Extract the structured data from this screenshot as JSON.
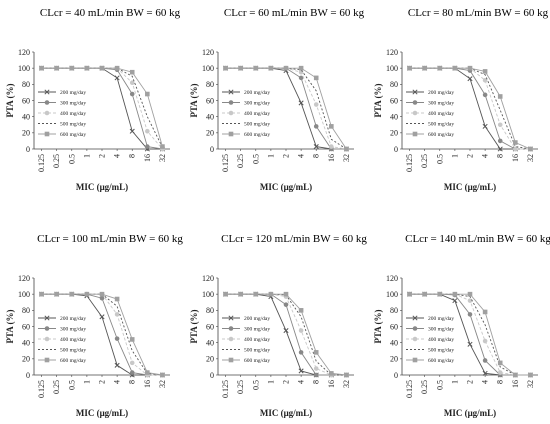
{
  "chart_data": [
    {
      "type": "line",
      "title": "CLcr = 40 mL/min BW = 60 kg",
      "xlabel": "MIC (μg/mL)",
      "ylabel": "PTA (%)",
      "x": [
        "0.125",
        "0.25",
        "0.5",
        "1",
        "2",
        "4",
        "8",
        "16",
        "32"
      ],
      "ylim": [
        0,
        120
      ],
      "yticks": [
        0,
        20,
        40,
        60,
        80,
        100,
        120
      ],
      "legend_position": "left",
      "series": [
        {
          "name": "200 mg/day",
          "marker": "x",
          "color": "#555555",
          "dash": "",
          "values": [
            100,
            100,
            100,
            100,
            100,
            88,
            22,
            0,
            0
          ]
        },
        {
          "name": "300 mg/day",
          "marker": "circle",
          "color": "#888888",
          "dash": "",
          "values": [
            100,
            100,
            100,
            100,
            100,
            98,
            68,
            3,
            0
          ]
        },
        {
          "name": "400 mg/day",
          "marker": "circle-light",
          "color": "#c8c8c8",
          "dash": "3,2",
          "values": [
            100,
            100,
            100,
            100,
            100,
            100,
            82,
            22,
            0
          ]
        },
        {
          "name": "500 mg/day",
          "marker": "none",
          "color": "#555555",
          "dash": "2,2",
          "values": [
            100,
            100,
            100,
            100,
            100,
            100,
            90,
            40,
            2
          ]
        },
        {
          "name": "600 mg/day",
          "marker": "square",
          "color": "#a0a0a0",
          "dash": "",
          "values": [
            100,
            100,
            100,
            100,
            100,
            100,
            95,
            68,
            3
          ]
        }
      ]
    },
    {
      "type": "line",
      "title": "CLcr = 60 mL/min BW = 60 kg",
      "xlabel": "MIC (μg/mL)",
      "ylabel": "PTA (%)",
      "x": [
        "0.125",
        "0.25",
        "0.5",
        "1",
        "2",
        "4",
        "8",
        "16",
        "32"
      ],
      "ylim": [
        0,
        120
      ],
      "yticks": [
        0,
        20,
        40,
        60,
        80,
        100,
        120
      ],
      "legend_position": "left",
      "series": [
        {
          "name": "200 mg/day",
          "marker": "x",
          "color": "#555555",
          "dash": "",
          "values": [
            100,
            100,
            100,
            100,
            97,
            57,
            3,
            0,
            0
          ]
        },
        {
          "name": "300 mg/day",
          "marker": "circle",
          "color": "#888888",
          "dash": "",
          "values": [
            100,
            100,
            100,
            100,
            100,
            88,
            28,
            0,
            0
          ]
        },
        {
          "name": "400 mg/day",
          "marker": "circle-light",
          "color": "#c8c8c8",
          "dash": "3,2",
          "values": [
            100,
            100,
            100,
            100,
            100,
            95,
            55,
            3,
            0
          ]
        },
        {
          "name": "500 mg/day",
          "marker": "none",
          "color": "#555555",
          "dash": "2,2",
          "values": [
            100,
            100,
            100,
            100,
            100,
            98,
            72,
            12,
            0
          ]
        },
        {
          "name": "600 mg/day",
          "marker": "square",
          "color": "#a0a0a0",
          "dash": "",
          "values": [
            100,
            100,
            100,
            100,
            100,
            100,
            88,
            28,
            0
          ]
        }
      ]
    },
    {
      "type": "line",
      "title": "CLcr = 80 mL/min BW = 60 kg",
      "xlabel": "MIC (μg/mL)",
      "ylabel": "PTA (%)",
      "x": [
        "0.125",
        "0.25",
        "0.5",
        "1",
        "2",
        "4",
        "8",
        "16",
        "32"
      ],
      "ylim": [
        0,
        120
      ],
      "yticks": [
        0,
        20,
        40,
        60,
        80,
        100,
        120
      ],
      "legend_position": "left",
      "series": [
        {
          "name": "200 mg/day",
          "marker": "x",
          "color": "#555555",
          "dash": "",
          "values": [
            100,
            100,
            100,
            100,
            87,
            28,
            0,
            0,
            0
          ]
        },
        {
          "name": "300 mg/day",
          "marker": "circle",
          "color": "#888888",
          "dash": "",
          "values": [
            100,
            100,
            100,
            100,
            97,
            67,
            10,
            0,
            0
          ]
        },
        {
          "name": "400 mg/day",
          "marker": "circle-light",
          "color": "#c8c8c8",
          "dash": "3,2",
          "values": [
            100,
            100,
            100,
            100,
            100,
            85,
            30,
            0,
            0
          ]
        },
        {
          "name": "500 mg/day",
          "marker": "none",
          "color": "#555555",
          "dash": "2,2",
          "values": [
            100,
            100,
            100,
            100,
            100,
            92,
            48,
            3,
            0
          ]
        },
        {
          "name": "600 mg/day",
          "marker": "square",
          "color": "#a0a0a0",
          "dash": "",
          "values": [
            100,
            100,
            100,
            100,
            100,
            96,
            65,
            8,
            0
          ]
        }
      ]
    },
    {
      "type": "line",
      "title": "CLcr = 100 mL/min BW = 60 kg",
      "xlabel": "MIC (μg/mL)",
      "ylabel": "PTA (%)",
      "x": [
        "0.125",
        "0.25",
        "0.5",
        "1",
        "2",
        "4",
        "8",
        "16",
        "32"
      ],
      "ylim": [
        0,
        120
      ],
      "yticks": [
        0,
        20,
        40,
        60,
        80,
        100,
        120
      ],
      "legend_position": "left",
      "series": [
        {
          "name": "200 mg/day",
          "marker": "x",
          "color": "#555555",
          "dash": "",
          "values": [
            100,
            100,
            100,
            98,
            72,
            12,
            0,
            0,
            0
          ]
        },
        {
          "name": "300 mg/day",
          "marker": "circle",
          "color": "#888888",
          "dash": "",
          "values": [
            100,
            100,
            100,
            100,
            95,
            45,
            3,
            0,
            0
          ]
        },
        {
          "name": "400 mg/day",
          "marker": "circle-light",
          "color": "#c8c8c8",
          "dash": "3,2",
          "values": [
            100,
            100,
            100,
            100,
            100,
            75,
            15,
            0,
            0
          ]
        },
        {
          "name": "500 mg/day",
          "marker": "none",
          "color": "#555555",
          "dash": "2,2",
          "values": [
            100,
            100,
            100,
            100,
            100,
            85,
            30,
            2,
            0
          ]
        },
        {
          "name": "600 mg/day",
          "marker": "square",
          "color": "#a0a0a0",
          "dash": "",
          "values": [
            100,
            100,
            100,
            100,
            100,
            94,
            44,
            3,
            0
          ]
        }
      ]
    },
    {
      "type": "line",
      "title": "CLcr = 120 mL/min BW = 60 kg",
      "xlabel": "MIC (μg/mL)",
      "ylabel": "PTA (%)",
      "x": [
        "0.125",
        "0.25",
        "0.5",
        "1",
        "2",
        "4",
        "8",
        "16",
        "32"
      ],
      "ylim": [
        0,
        120
      ],
      "yticks": [
        0,
        20,
        40,
        60,
        80,
        100,
        120
      ],
      "legend_position": "left",
      "series": [
        {
          "name": "200 mg/day",
          "marker": "x",
          "color": "#555555",
          "dash": "",
          "values": [
            100,
            100,
            100,
            97,
            55,
            5,
            0,
            0,
            0
          ]
        },
        {
          "name": "300 mg/day",
          "marker": "circle",
          "color": "#888888",
          "dash": "",
          "values": [
            100,
            100,
            100,
            100,
            87,
            28,
            0,
            0,
            0
          ]
        },
        {
          "name": "400 mg/day",
          "marker": "circle-light",
          "color": "#c8c8c8",
          "dash": "3,2",
          "values": [
            100,
            100,
            100,
            100,
            97,
            55,
            8,
            0,
            0
          ]
        },
        {
          "name": "500 mg/day",
          "marker": "none",
          "color": "#555555",
          "dash": "2,2",
          "values": [
            100,
            100,
            100,
            100,
            99,
            72,
            17,
            0,
            0
          ]
        },
        {
          "name": "600 mg/day",
          "marker": "square",
          "color": "#a0a0a0",
          "dash": "",
          "values": [
            100,
            100,
            100,
            100,
            100,
            80,
            28,
            2,
            0
          ]
        }
      ]
    },
    {
      "type": "line",
      "title": "CLcr = 140 mL/min BW = 60 kg",
      "xlabel": "MIC (μg/mL)",
      "ylabel": "PTA (%)",
      "x": [
        "0.125",
        "0.25",
        "0.5",
        "1",
        "2",
        "4",
        "8",
        "16",
        "32"
      ],
      "ylim": [
        0,
        120
      ],
      "yticks": [
        0,
        20,
        40,
        60,
        80,
        100,
        120
      ],
      "legend_position": "left",
      "series": [
        {
          "name": "200 mg/day",
          "marker": "x",
          "color": "#555555",
          "dash": "",
          "values": [
            100,
            100,
            100,
            92,
            38,
            2,
            0,
            0,
            0
          ]
        },
        {
          "name": "300 mg/day",
          "marker": "circle",
          "color": "#888888",
          "dash": "",
          "values": [
            100,
            100,
            100,
            99,
            75,
            18,
            0,
            0,
            0
          ]
        },
        {
          "name": "400 mg/day",
          "marker": "circle-light",
          "color": "#c8c8c8",
          "dash": "3,2",
          "values": [
            100,
            100,
            100,
            100,
            92,
            42,
            3,
            0,
            0
          ]
        },
        {
          "name": "500 mg/day",
          "marker": "none",
          "color": "#555555",
          "dash": "2,2",
          "values": [
            100,
            100,
            100,
            100,
            97,
            62,
            10,
            0,
            0
          ]
        },
        {
          "name": "600 mg/day",
          "marker": "square",
          "color": "#a0a0a0",
          "dash": "",
          "values": [
            100,
            100,
            100,
            100,
            100,
            78,
            15,
            0,
            0
          ]
        }
      ]
    }
  ]
}
